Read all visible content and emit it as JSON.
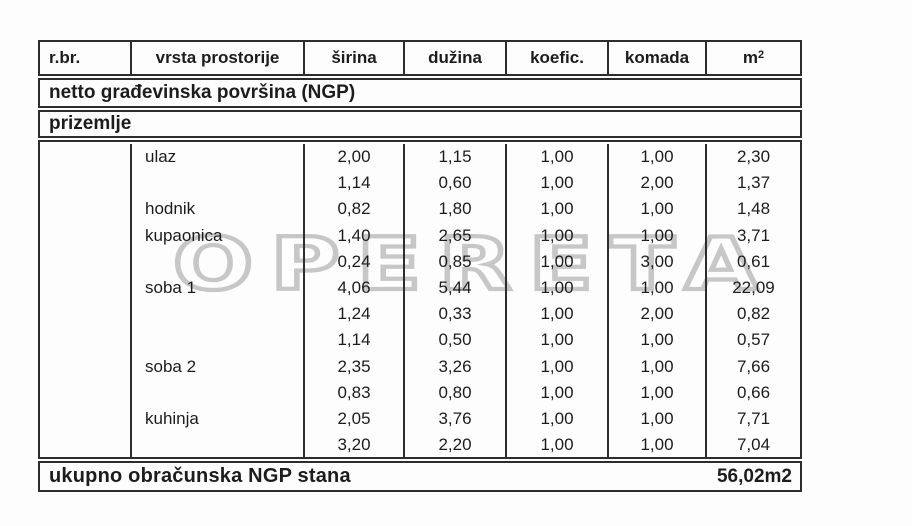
{
  "page": {
    "background": "#fdfdfd",
    "text_color": "#1c1c1c",
    "border_color": "#2d2d2d"
  },
  "watermark": {
    "text": "OPERETA",
    "color": "#c7c7c7"
  },
  "table": {
    "headers": [
      "r.br.",
      "vrsta prostorije",
      "širina",
      "dužina",
      "koefic.",
      "komada"
    ],
    "m2_header": {
      "base": "m",
      "sup": "2"
    },
    "section_ngp": "netto građevinska površina (NGP)",
    "section_floor": "prizemlje",
    "rows": [
      {
        "rbr": "",
        "room": "ulaz",
        "sirina": "2,00",
        "duzina": "1,15",
        "koefic": "1,00",
        "komada": "1,00",
        "m2": "2,30"
      },
      {
        "rbr": "",
        "room": "",
        "sirina": "1,14",
        "duzina": "0,60",
        "koefic": "1,00",
        "komada": "2,00",
        "m2": "1,37"
      },
      {
        "rbr": "",
        "room": "hodnik",
        "sirina": "0,82",
        "duzina": "1,80",
        "koefic": "1,00",
        "komada": "1,00",
        "m2": "1,48"
      },
      {
        "rbr": "",
        "room": "kupaonica",
        "sirina": "1,40",
        "duzina": "2,65",
        "koefic": "1,00",
        "komada": "1,00",
        "m2": "3,71"
      },
      {
        "rbr": "",
        "room": "",
        "sirina": "0,24",
        "duzina": "0,85",
        "koefic": "1,00",
        "komada": "3,00",
        "m2": "0,61"
      },
      {
        "rbr": "",
        "room": "soba 1",
        "sirina": "4,06",
        "duzina": "5,44",
        "koefic": "1,00",
        "komada": "1,00",
        "m2": "22,09"
      },
      {
        "rbr": "",
        "room": "",
        "sirina": "1,24",
        "duzina": "0,33",
        "koefic": "1,00",
        "komada": "2,00",
        "m2": "0,82"
      },
      {
        "rbr": "",
        "room": "",
        "sirina": "1,14",
        "duzina": "0,50",
        "koefic": "1,00",
        "komada": "1,00",
        "m2": "0,57"
      },
      {
        "rbr": "",
        "room": "soba 2",
        "sirina": "2,35",
        "duzina": "3,26",
        "koefic": "1,00",
        "komada": "1,00",
        "m2": "7,66"
      },
      {
        "rbr": "",
        "room": "",
        "sirina": "0,83",
        "duzina": "0,80",
        "koefic": "1,00",
        "komada": "1,00",
        "m2": "0,66"
      },
      {
        "rbr": "",
        "room": "kuhinja",
        "sirina": "2,05",
        "duzina": "3,76",
        "koefic": "1,00",
        "komada": "1,00",
        "m2": "7,71"
      },
      {
        "rbr": "",
        "room": "",
        "sirina": "3,20",
        "duzina": "2,20",
        "koefic": "1,00",
        "komada": "1,00",
        "m2": "7,04"
      }
    ],
    "total_label": "ukupno obračunska NGP stana",
    "total_value": "56,02m2"
  }
}
